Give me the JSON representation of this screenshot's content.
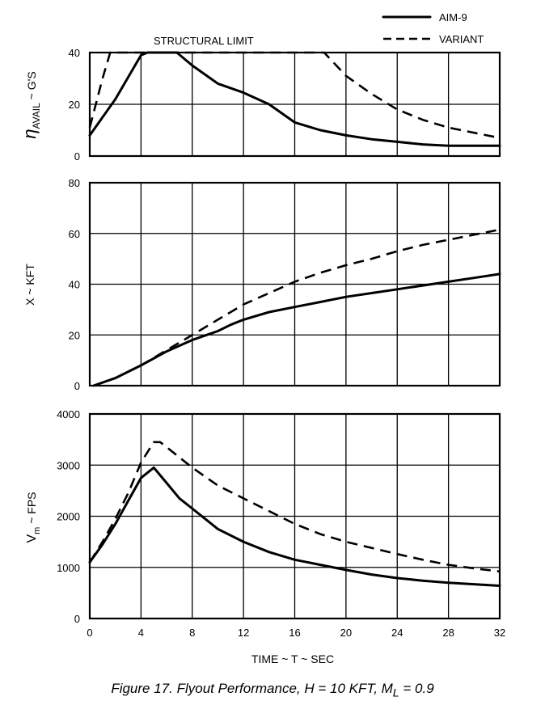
{
  "caption": {
    "main": "Figure 17.   Flyout Performance, H = 10 KFT, M",
    "sub": "L",
    "tail": " = 0.9"
  },
  "legend": {
    "aim9": "AIM-9",
    "variant": "VARIANT"
  },
  "xaxis": {
    "label": "TIME ~ T ~ SEC",
    "ticks": [
      0,
      4,
      8,
      12,
      16,
      20,
      24,
      28,
      32
    ]
  },
  "chart_data": [
    {
      "type": "line",
      "ylabel_main": "η",
      "ylabel_sub": "AVAIL",
      "ylabel_tail": " ~ G'S",
      "annotation": "STRUCTURAL LIMIT",
      "xlim": [
        0,
        32
      ],
      "ylim": [
        0,
        40
      ],
      "yticks": [
        0,
        20,
        40
      ],
      "series": [
        {
          "name": "AIM-9",
          "style": "solid",
          "points": [
            [
              0,
              8
            ],
            [
              2,
              22
            ],
            [
              4,
              39
            ],
            [
              4.5,
              40
            ],
            [
              6.8,
              40
            ],
            [
              8,
              35
            ],
            [
              10,
              28
            ],
            [
              12,
              24.5
            ],
            [
              14,
              20
            ],
            [
              16,
              13
            ],
            [
              18,
              10
            ],
            [
              20,
              8
            ],
            [
              22,
              6.5
            ],
            [
              24,
              5.5
            ],
            [
              26,
              4.5
            ],
            [
              28,
              4
            ],
            [
              30,
              4
            ],
            [
              32,
              4
            ]
          ]
        },
        {
          "name": "VARIANT",
          "style": "dashed",
          "points": [
            [
              0,
              11
            ],
            [
              1,
              30
            ],
            [
              1.6,
              40
            ],
            [
              18.3,
              40
            ],
            [
              20,
              31
            ],
            [
              22,
              24
            ],
            [
              24,
              18
            ],
            [
              26,
              14
            ],
            [
              28,
              11
            ],
            [
              30,
              9
            ],
            [
              32,
              7
            ]
          ]
        }
      ]
    },
    {
      "type": "line",
      "ylabel": "X ~ KFT",
      "xlim": [
        0,
        32
      ],
      "ylim": [
        0,
        80
      ],
      "yticks": [
        0,
        20,
        40,
        60,
        80
      ],
      "series": [
        {
          "name": "AIM-9",
          "style": "solid",
          "points": [
            [
              0.3,
              0
            ],
            [
              2,
              3
            ],
            [
              4,
              8
            ],
            [
              6,
              13.5
            ],
            [
              8,
              18
            ],
            [
              10,
              21.5
            ],
            [
              11,
              24
            ],
            [
              12,
              26
            ],
            [
              14,
              29
            ],
            [
              16,
              31
            ],
            [
              18,
              33
            ],
            [
              20,
              35
            ],
            [
              22,
              36.5
            ],
            [
              24,
              38
            ],
            [
              26,
              39.5
            ],
            [
              28,
              41
            ],
            [
              30,
              42.5
            ],
            [
              32,
              44
            ]
          ]
        },
        {
          "name": "VARIANT",
          "style": "dashed",
          "points": [
            [
              0.3,
              0
            ],
            [
              2,
              3
            ],
            [
              4,
              8
            ],
            [
              6,
              14
            ],
            [
              8,
              20
            ],
            [
              10,
              26
            ],
            [
              12,
              32
            ],
            [
              14,
              36.5
            ],
            [
              16,
              41
            ],
            [
              18,
              44.5
            ],
            [
              20,
              47.5
            ],
            [
              22,
              50
            ],
            [
              24,
              53
            ],
            [
              26,
              55.5
            ],
            [
              28,
              57.5
            ],
            [
              30,
              59.5
            ],
            [
              32,
              61.5
            ]
          ]
        }
      ]
    },
    {
      "type": "line",
      "ylabel_main": "V",
      "ylabel_sub": "m",
      "ylabel_tail": " ~ FPS",
      "xlim": [
        0,
        32
      ],
      "ylim": [
        0,
        4000
      ],
      "yticks": [
        0,
        1000,
        2000,
        3000,
        4000
      ],
      "series": [
        {
          "name": "AIM-9",
          "style": "solid",
          "points": [
            [
              0,
              1100
            ],
            [
              1,
              1450
            ],
            [
              2,
              1850
            ],
            [
              3,
              2300
            ],
            [
              4,
              2750
            ],
            [
              5,
              2950
            ],
            [
              6,
              2650
            ],
            [
              7,
              2350
            ],
            [
              8,
              2150
            ],
            [
              10,
              1750
            ],
            [
              12,
              1500
            ],
            [
              14,
              1300
            ],
            [
              16,
              1150
            ],
            [
              18,
              1050
            ],
            [
              20,
              950
            ],
            [
              22,
              860
            ],
            [
              24,
              790
            ],
            [
              26,
              740
            ],
            [
              28,
              700
            ],
            [
              30,
              670
            ],
            [
              32,
              640
            ]
          ]
        },
        {
          "name": "VARIANT",
          "style": "dashed",
          "points": [
            [
              0,
              1100
            ],
            [
              1,
              1500
            ],
            [
              2,
              1950
            ],
            [
              3,
              2450
            ],
            [
              4,
              3050
            ],
            [
              5,
              3450
            ],
            [
              5.5,
              3450
            ],
            [
              6,
              3350
            ],
            [
              8,
              2950
            ],
            [
              10,
              2600
            ],
            [
              12,
              2350
            ],
            [
              14,
              2100
            ],
            [
              16,
              1850
            ],
            [
              18,
              1650
            ],
            [
              20,
              1500
            ],
            [
              22,
              1380
            ],
            [
              24,
              1260
            ],
            [
              26,
              1150
            ],
            [
              28,
              1050
            ],
            [
              30,
              980
            ],
            [
              32,
              920
            ]
          ]
        }
      ]
    }
  ]
}
